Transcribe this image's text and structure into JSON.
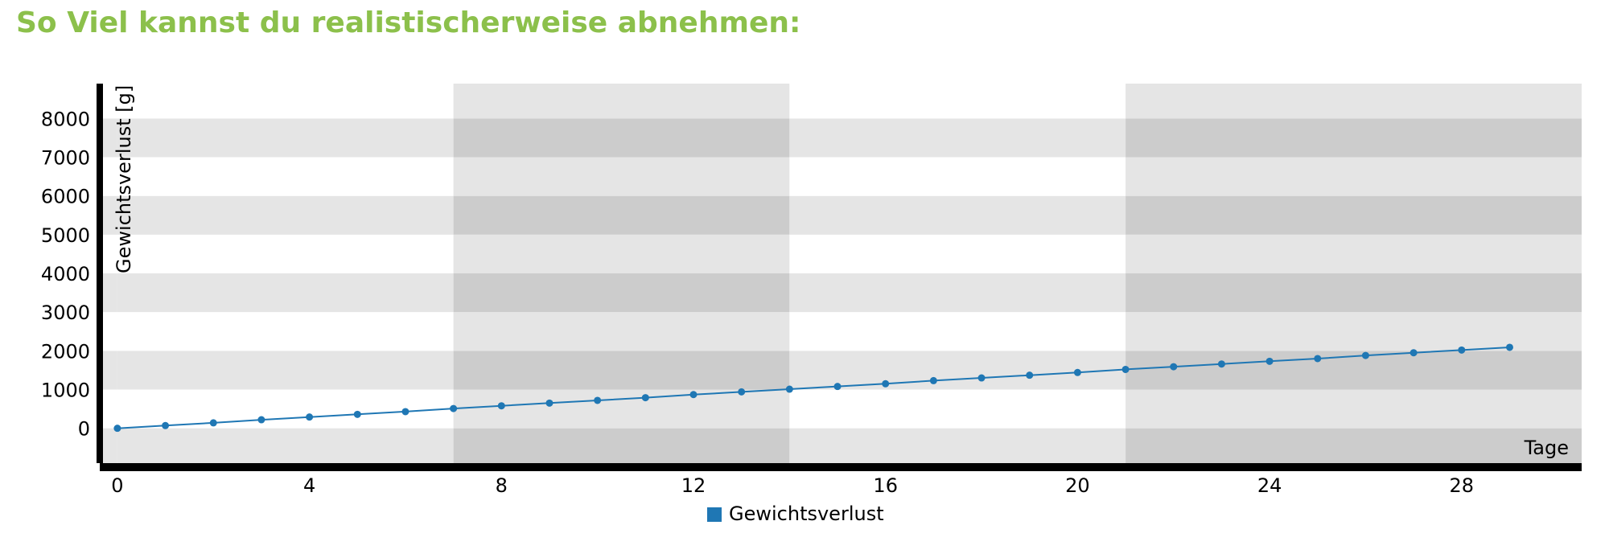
{
  "page": {
    "title": "So Viel kannst du realistischerweise abnehmen:"
  },
  "colors": {
    "title": "#8cc04b",
    "series": "#1f77b4",
    "band_light": "#e5e5e5",
    "band_dark": "#cccccc",
    "band_white": "#ffffff",
    "axis": "#000000"
  },
  "chart_data": {
    "type": "line",
    "title": "",
    "xlabel": "Tage",
    "ylabel": "Gewichtsverlust [g]",
    "xlim": [
      -0.3,
      30.5
    ],
    "ylim": [
      -900,
      8900
    ],
    "x_ticks": [
      0,
      4,
      8,
      12,
      16,
      20,
      24,
      28
    ],
    "y_ticks": [
      0,
      1000,
      2000,
      3000,
      4000,
      5000,
      6000,
      7000,
      8000
    ],
    "grid": true,
    "legend_position": "bottom-center",
    "week_bands": [
      {
        "from": -0.3,
        "to": 0,
        "shade": "light"
      },
      {
        "from": 0,
        "to": 7,
        "shade": "light"
      },
      {
        "from": 7,
        "to": 14,
        "shade": "dark"
      },
      {
        "from": 14,
        "to": 21,
        "shade": "light"
      },
      {
        "from": 21,
        "to": 30.5,
        "shade": "dark"
      }
    ],
    "series": [
      {
        "name": "Gewichtsverlust",
        "x": [
          0,
          1,
          2,
          3,
          4,
          5,
          6,
          7,
          8,
          9,
          10,
          11,
          12,
          13,
          14,
          15,
          16,
          17,
          18,
          19,
          20,
          21,
          22,
          23,
          24,
          25,
          26,
          27,
          28,
          29
        ],
        "y": [
          0,
          70,
          140,
          220,
          290,
          360,
          430,
          510,
          580,
          650,
          720,
          790,
          870,
          940,
          1010,
          1080,
          1150,
          1230,
          1300,
          1370,
          1440,
          1520,
          1590,
          1660,
          1730,
          1800,
          1880,
          1950,
          2020,
          2090
        ]
      }
    ]
  }
}
